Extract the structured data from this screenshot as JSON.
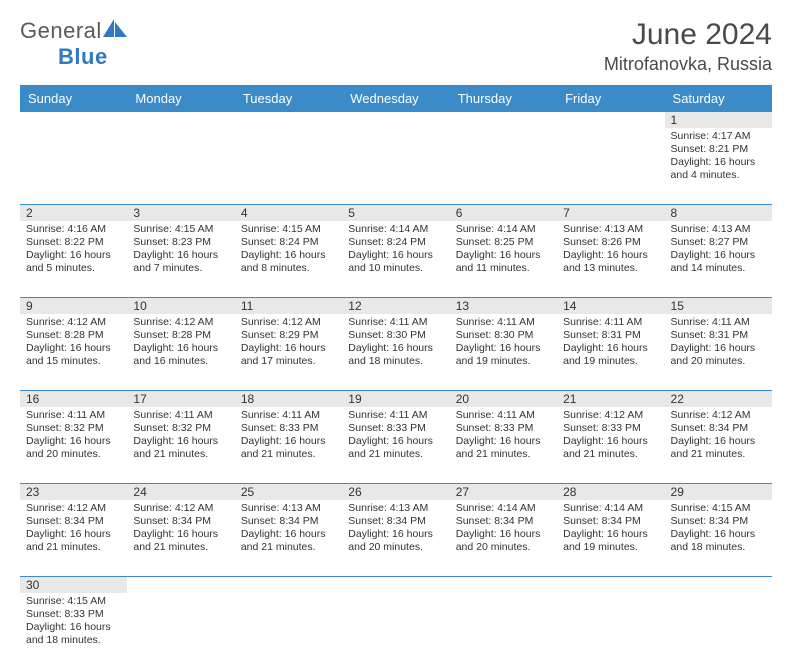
{
  "brand": {
    "word1": "General",
    "word2": "Blue"
  },
  "title": "June 2024",
  "location": "Mitrofanovka, Russia",
  "colors": {
    "header_bg": "#3b8bc9",
    "header_text": "#ffffff",
    "daynum_bg": "#e8e8e8",
    "text": "#333333",
    "logo_gray": "#5a5a5a",
    "logo_blue": "#2f7ac0"
  },
  "weekdays": [
    "Sunday",
    "Monday",
    "Tuesday",
    "Wednesday",
    "Thursday",
    "Friday",
    "Saturday"
  ],
  "weeks": [
    [
      {
        "blank": true
      },
      {
        "blank": true
      },
      {
        "blank": true
      },
      {
        "blank": true
      },
      {
        "blank": true
      },
      {
        "blank": true
      },
      {
        "n": "1",
        "sr": "Sunrise: 4:17 AM",
        "ss": "Sunset: 8:21 PM",
        "d1": "Daylight: 16 hours",
        "d2": "and 4 minutes."
      }
    ],
    [
      {
        "n": "2",
        "sr": "Sunrise: 4:16 AM",
        "ss": "Sunset: 8:22 PM",
        "d1": "Daylight: 16 hours",
        "d2": "and 5 minutes."
      },
      {
        "n": "3",
        "sr": "Sunrise: 4:15 AM",
        "ss": "Sunset: 8:23 PM",
        "d1": "Daylight: 16 hours",
        "d2": "and 7 minutes."
      },
      {
        "n": "4",
        "sr": "Sunrise: 4:15 AM",
        "ss": "Sunset: 8:24 PM",
        "d1": "Daylight: 16 hours",
        "d2": "and 8 minutes."
      },
      {
        "n": "5",
        "sr": "Sunrise: 4:14 AM",
        "ss": "Sunset: 8:24 PM",
        "d1": "Daylight: 16 hours",
        "d2": "and 10 minutes."
      },
      {
        "n": "6",
        "sr": "Sunrise: 4:14 AM",
        "ss": "Sunset: 8:25 PM",
        "d1": "Daylight: 16 hours",
        "d2": "and 11 minutes."
      },
      {
        "n": "7",
        "sr": "Sunrise: 4:13 AM",
        "ss": "Sunset: 8:26 PM",
        "d1": "Daylight: 16 hours",
        "d2": "and 13 minutes."
      },
      {
        "n": "8",
        "sr": "Sunrise: 4:13 AM",
        "ss": "Sunset: 8:27 PM",
        "d1": "Daylight: 16 hours",
        "d2": "and 14 minutes."
      }
    ],
    [
      {
        "n": "9",
        "sr": "Sunrise: 4:12 AM",
        "ss": "Sunset: 8:28 PM",
        "d1": "Daylight: 16 hours",
        "d2": "and 15 minutes."
      },
      {
        "n": "10",
        "sr": "Sunrise: 4:12 AM",
        "ss": "Sunset: 8:28 PM",
        "d1": "Daylight: 16 hours",
        "d2": "and 16 minutes."
      },
      {
        "n": "11",
        "sr": "Sunrise: 4:12 AM",
        "ss": "Sunset: 8:29 PM",
        "d1": "Daylight: 16 hours",
        "d2": "and 17 minutes."
      },
      {
        "n": "12",
        "sr": "Sunrise: 4:11 AM",
        "ss": "Sunset: 8:30 PM",
        "d1": "Daylight: 16 hours",
        "d2": "and 18 minutes."
      },
      {
        "n": "13",
        "sr": "Sunrise: 4:11 AM",
        "ss": "Sunset: 8:30 PM",
        "d1": "Daylight: 16 hours",
        "d2": "and 19 minutes."
      },
      {
        "n": "14",
        "sr": "Sunrise: 4:11 AM",
        "ss": "Sunset: 8:31 PM",
        "d1": "Daylight: 16 hours",
        "d2": "and 19 minutes."
      },
      {
        "n": "15",
        "sr": "Sunrise: 4:11 AM",
        "ss": "Sunset: 8:31 PM",
        "d1": "Daylight: 16 hours",
        "d2": "and 20 minutes."
      }
    ],
    [
      {
        "n": "16",
        "sr": "Sunrise: 4:11 AM",
        "ss": "Sunset: 8:32 PM",
        "d1": "Daylight: 16 hours",
        "d2": "and 20 minutes."
      },
      {
        "n": "17",
        "sr": "Sunrise: 4:11 AM",
        "ss": "Sunset: 8:32 PM",
        "d1": "Daylight: 16 hours",
        "d2": "and 21 minutes."
      },
      {
        "n": "18",
        "sr": "Sunrise: 4:11 AM",
        "ss": "Sunset: 8:33 PM",
        "d1": "Daylight: 16 hours",
        "d2": "and 21 minutes."
      },
      {
        "n": "19",
        "sr": "Sunrise: 4:11 AM",
        "ss": "Sunset: 8:33 PM",
        "d1": "Daylight: 16 hours",
        "d2": "and 21 minutes."
      },
      {
        "n": "20",
        "sr": "Sunrise: 4:11 AM",
        "ss": "Sunset: 8:33 PM",
        "d1": "Daylight: 16 hours",
        "d2": "and 21 minutes."
      },
      {
        "n": "21",
        "sr": "Sunrise: 4:12 AM",
        "ss": "Sunset: 8:33 PM",
        "d1": "Daylight: 16 hours",
        "d2": "and 21 minutes."
      },
      {
        "n": "22",
        "sr": "Sunrise: 4:12 AM",
        "ss": "Sunset: 8:34 PM",
        "d1": "Daylight: 16 hours",
        "d2": "and 21 minutes."
      }
    ],
    [
      {
        "n": "23",
        "sr": "Sunrise: 4:12 AM",
        "ss": "Sunset: 8:34 PM",
        "d1": "Daylight: 16 hours",
        "d2": "and 21 minutes."
      },
      {
        "n": "24",
        "sr": "Sunrise: 4:12 AM",
        "ss": "Sunset: 8:34 PM",
        "d1": "Daylight: 16 hours",
        "d2": "and 21 minutes."
      },
      {
        "n": "25",
        "sr": "Sunrise: 4:13 AM",
        "ss": "Sunset: 8:34 PM",
        "d1": "Daylight: 16 hours",
        "d2": "and 21 minutes."
      },
      {
        "n": "26",
        "sr": "Sunrise: 4:13 AM",
        "ss": "Sunset: 8:34 PM",
        "d1": "Daylight: 16 hours",
        "d2": "and 20 minutes."
      },
      {
        "n": "27",
        "sr": "Sunrise: 4:14 AM",
        "ss": "Sunset: 8:34 PM",
        "d1": "Daylight: 16 hours",
        "d2": "and 20 minutes."
      },
      {
        "n": "28",
        "sr": "Sunrise: 4:14 AM",
        "ss": "Sunset: 8:34 PM",
        "d1": "Daylight: 16 hours",
        "d2": "and 19 minutes."
      },
      {
        "n": "29",
        "sr": "Sunrise: 4:15 AM",
        "ss": "Sunset: 8:34 PM",
        "d1": "Daylight: 16 hours",
        "d2": "and 18 minutes."
      }
    ],
    [
      {
        "n": "30",
        "sr": "Sunrise: 4:15 AM",
        "ss": "Sunset: 8:33 PM",
        "d1": "Daylight: 16 hours",
        "d2": "and 18 minutes."
      },
      {
        "blank": true
      },
      {
        "blank": true
      },
      {
        "blank": true
      },
      {
        "blank": true
      },
      {
        "blank": true
      },
      {
        "blank": true
      }
    ]
  ]
}
